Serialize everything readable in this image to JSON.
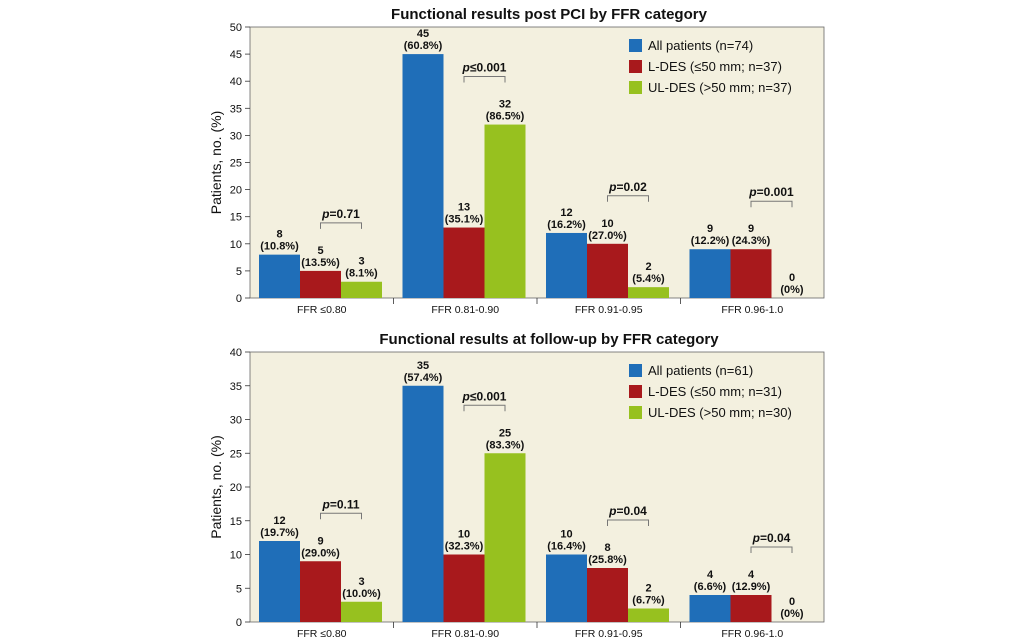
{
  "chart_data": [
    {
      "type": "bar",
      "title": "Functional results post PCI by FFR category",
      "ylabel": "Patients, no. (%)",
      "xlabel": "",
      "ylim": [
        0,
        50
      ],
      "ytick_step": 5,
      "categories": [
        "FFR ≤0.80",
        "FFR 0.81-0.90",
        "FFR 0.91-0.95",
        "FFR 0.96-1.0"
      ],
      "series": [
        {
          "name": "All patients (n=74)",
          "color": "#1f6eb8",
          "values": [
            8,
            45,
            12,
            9
          ],
          "labels": [
            "8\n(10.8%)",
            "45\n(60.8%)",
            "12\n(16.2%)",
            "9\n(12.2%)"
          ]
        },
        {
          "name": "L-DES (≤50 mm; n=37)",
          "color": "#a8191c",
          "values": [
            5,
            13,
            10,
            9
          ],
          "labels": [
            "5\n(13.5%)",
            "13\n(35.1%)",
            "10\n(27.0%)",
            "9\n(24.3%)"
          ]
        },
        {
          "name": "UL-DES (>50 mm; n=37)",
          "color": "#97c11f",
          "values": [
            3,
            32,
            2,
            0
          ],
          "labels": [
            "3\n(8.1%)",
            "32\n(86.5%)",
            "2\n(5.4%)",
            "0\n(0%)"
          ]
        }
      ],
      "p_values": [
        "p=0.71",
        "p≤0.001",
        "p=0.02",
        "p=0.001"
      ],
      "legend_position": "top-right",
      "grid": false,
      "background": "#f3f0df"
    },
    {
      "type": "bar",
      "title": "Functional results at follow-up by FFR category",
      "ylabel": "Patients, no. (%)",
      "xlabel": "",
      "ylim": [
        0,
        40
      ],
      "ytick_step": 5,
      "categories": [
        "FFR ≤0.80",
        "FFR 0.81-0.90",
        "FFR 0.91-0.95",
        "FFR 0.96-1.0"
      ],
      "series": [
        {
          "name": "All patients (n=61)",
          "color": "#1f6eb8",
          "values": [
            12,
            35,
            10,
            4
          ],
          "labels": [
            "12\n(19.7%)",
            "35\n(57.4%)",
            "10\n(16.4%)",
            "4\n(6.6%)"
          ]
        },
        {
          "name": "L-DES (≤50 mm; n=31)",
          "color": "#a8191c",
          "values": [
            9,
            10,
            8,
            4
          ],
          "labels": [
            "9\n(29.0%)",
            "10\n(32.3%)",
            "8\n(25.8%)",
            "4\n(12.9%)"
          ]
        },
        {
          "name": "UL-DES (>50 mm; n=30)",
          "color": "#97c11f",
          "values": [
            3,
            25,
            2,
            0
          ],
          "labels": [
            "3\n(10.0%)",
            "25\n(83.3%)",
            "2\n(6.7%)",
            "0\n(0%)"
          ]
        }
      ],
      "p_values": [
        "p=0.11",
        "p≤0.001",
        "p=0.04",
        "p=0.04"
      ],
      "legend_position": "top-right",
      "grid": false,
      "background": "#f3f0df"
    }
  ]
}
